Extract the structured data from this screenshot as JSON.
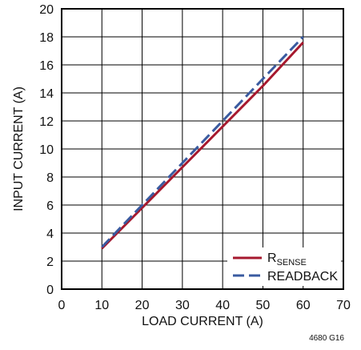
{
  "chart_data": {
    "type": "line",
    "xlabel": "LOAD CURRENT (A)",
    "ylabel": "INPUT CURRENT (A)",
    "xlim": [
      0,
      70
    ],
    "ylim": [
      0,
      20
    ],
    "xticks": [
      0,
      10,
      20,
      30,
      40,
      50,
      60,
      70
    ],
    "yticks": [
      0,
      2,
      4,
      6,
      8,
      10,
      12,
      14,
      16,
      18,
      20
    ],
    "grid": true,
    "legend_position": "bottom-right",
    "series": [
      {
        "name": "RSENSE",
        "name_main": "R",
        "name_sub": "SENSE",
        "color": "#A6192E",
        "style": "solid",
        "x": [
          10,
          20,
          30,
          40,
          50,
          60
        ],
        "y": [
          2.9,
          5.8,
          8.7,
          11.6,
          14.5,
          17.6
        ]
      },
      {
        "name": "READBACK",
        "color": "#3A5BA0",
        "style": "dashed",
        "x": [
          10,
          20,
          30,
          40,
          50,
          60
        ],
        "y": [
          3.0,
          6.0,
          9.0,
          12.0,
          15.0,
          18.0
        ]
      }
    ],
    "figure_id": "4680 G16"
  }
}
